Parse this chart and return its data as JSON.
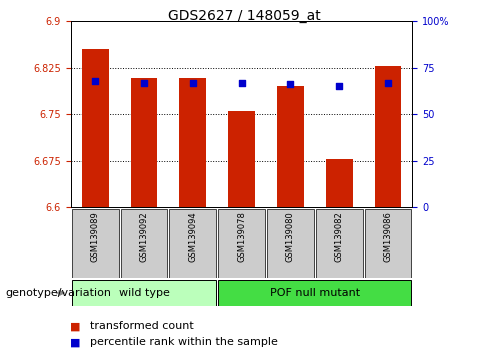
{
  "title": "GDS2627 / 148059_at",
  "samples": [
    "GSM139089",
    "GSM139092",
    "GSM139094",
    "GSM139078",
    "GSM139080",
    "GSM139082",
    "GSM139086"
  ],
  "bar_values": [
    6.855,
    6.808,
    6.808,
    6.755,
    6.795,
    6.678,
    6.828
  ],
  "percentile_values": [
    68,
    67,
    67,
    67,
    66,
    65,
    67
  ],
  "bar_bottom": 6.6,
  "ylim_left": [
    6.6,
    6.9
  ],
  "ylim_right": [
    0,
    100
  ],
  "yticks_left": [
    6.6,
    6.675,
    6.75,
    6.825,
    6.9
  ],
  "yticks_right": [
    0,
    25,
    50,
    75,
    100
  ],
  "ytick_labels_left": [
    "6.6",
    "6.675",
    "6.75",
    "6.825",
    "6.9"
  ],
  "ytick_labels_right": [
    "0",
    "25",
    "50",
    "75",
    "100%"
  ],
  "bar_color": "#cc2200",
  "dot_color": "#0000cc",
  "wt_count": 3,
  "pof_count": 4,
  "wild_type_label": "wild type",
  "pof_mutant_label": "POF null mutant",
  "wild_type_bg": "#bbffbb",
  "pof_mutant_bg": "#44dd44",
  "sample_area_bg": "#cccccc",
  "legend_bar_label": "transformed count",
  "legend_dot_label": "percentile rank within the sample",
  "genotype_label": "genotype/variation",
  "bar_width": 0.55,
  "left_tick_color": "#cc2200",
  "right_tick_color": "#0000cc",
  "title_fontsize": 10,
  "tick_fontsize": 7,
  "sample_fontsize": 6,
  "group_fontsize": 8,
  "legend_fontsize": 8,
  "genotype_fontsize": 8
}
